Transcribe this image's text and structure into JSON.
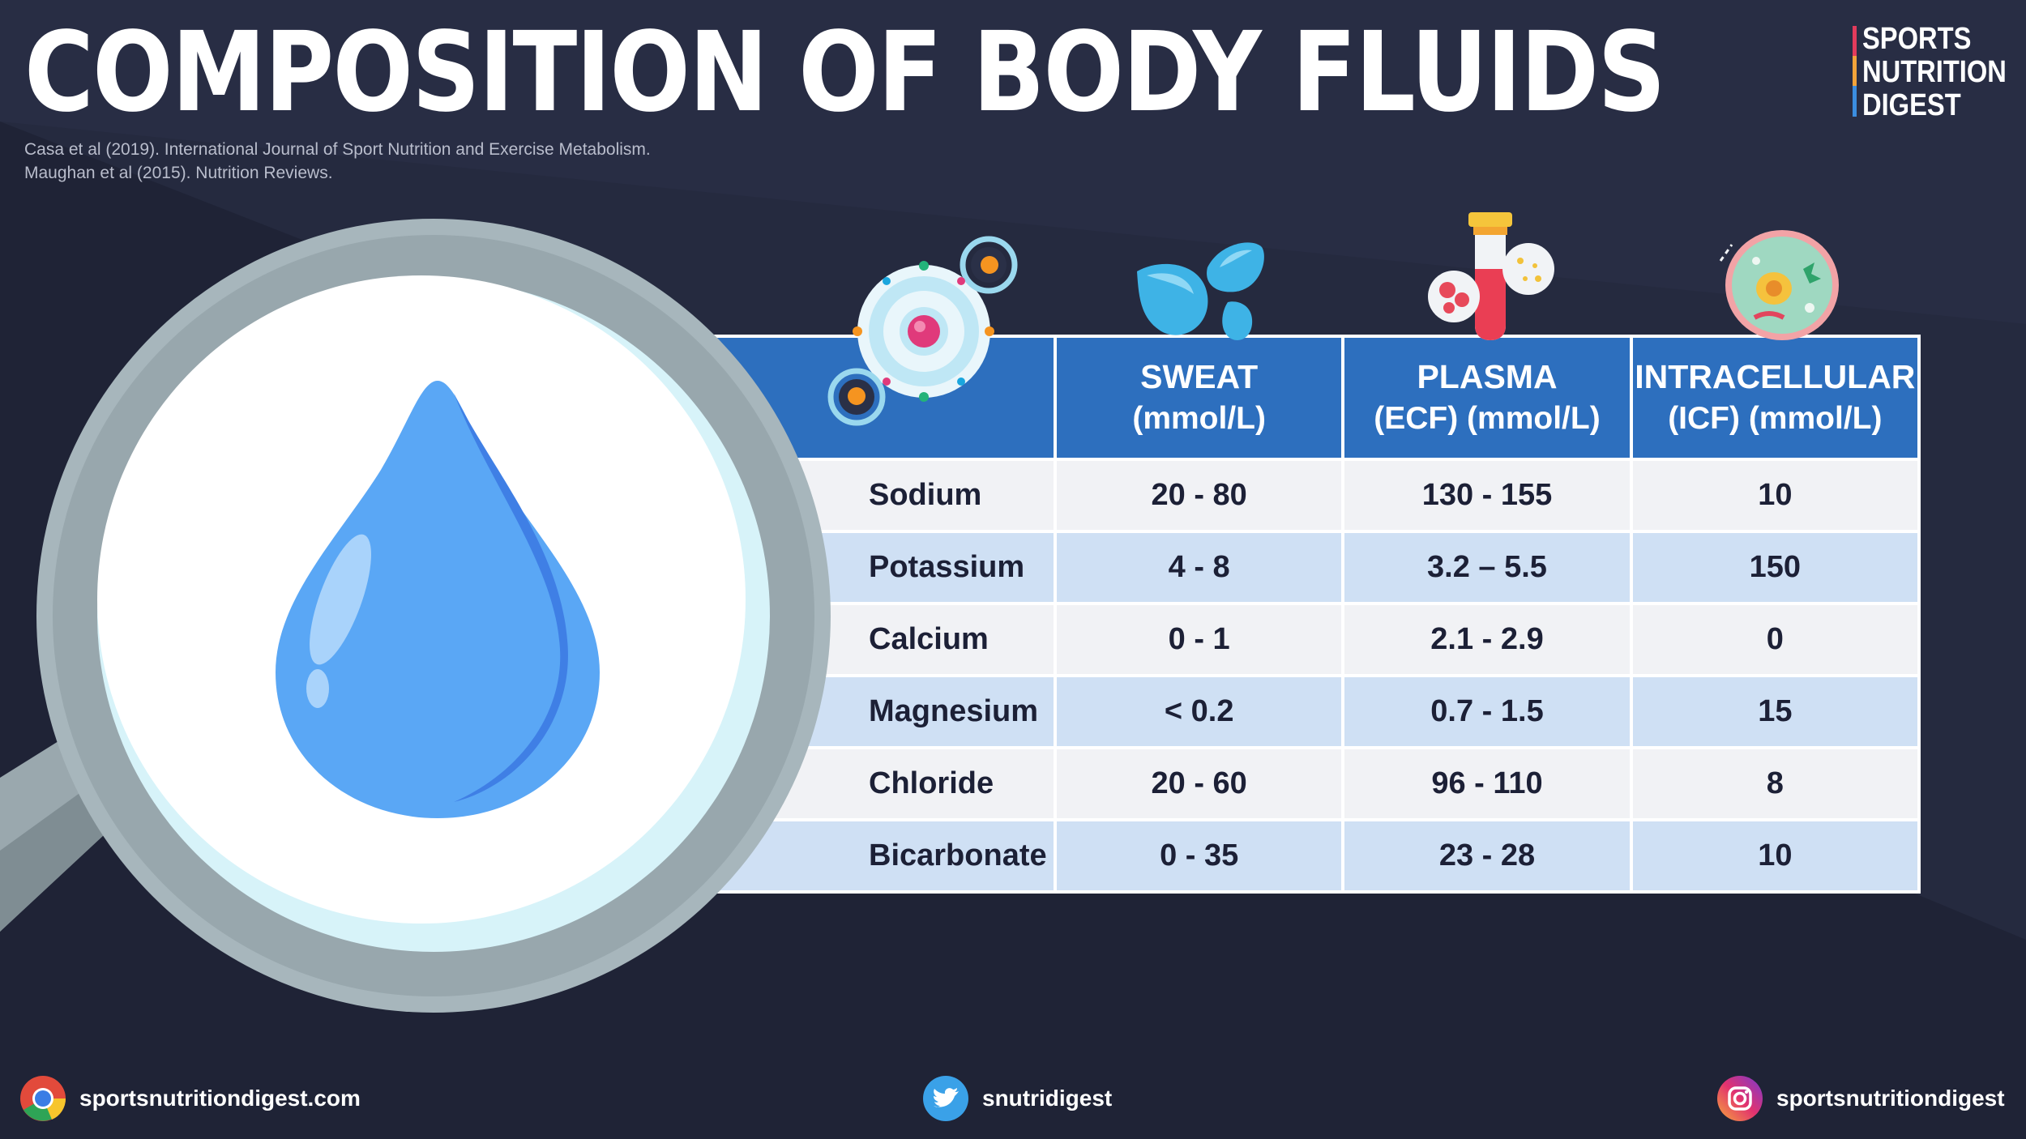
{
  "title": "COMPOSITION OF BODY FLUIDS",
  "references": [
    "Casa et al (2019). International Journal of Sport Nutrition and Exercise Metabolism.",
    "Maughan et al (2015). Nutrition Reviews."
  ],
  "logo": {
    "lines": [
      "SPORTS",
      "NUTRITION",
      "DIGEST"
    ]
  },
  "table": {
    "columns": [
      {
        "line1": "SWEAT",
        "line2": "(mmol/L)"
      },
      {
        "line1": "PLASMA",
        "line2": "(ECF) (mmol/L)"
      },
      {
        "line1": "INTRACELLULAR",
        "line2": "(ICF) (mmol/L)"
      }
    ],
    "rows": [
      {
        "name": "Sodium",
        "sweat": "20 - 80",
        "plasma": "130 - 155",
        "icf": "10"
      },
      {
        "name": "Potassium",
        "sweat": "4 - 8",
        "plasma": "3.2 – 5.5",
        "icf": "150"
      },
      {
        "name": "Calcium",
        "sweat": "0 - 1",
        "plasma": "2.1 - 2.9",
        "icf": "0"
      },
      {
        "name": "Magnesium",
        "sweat": "< 0.2",
        "plasma": "0.7 - 1.5",
        "icf": "15"
      },
      {
        "name": "Chloride",
        "sweat": "20 - 60",
        "plasma": "96 - 110",
        "icf": "8"
      },
      {
        "name": "Bicarbonate",
        "sweat": "0 - 35",
        "plasma": "23 - 28",
        "icf": "10"
      }
    ]
  },
  "footer": {
    "website": "sportsnutritiondigest.com",
    "twitter": "snutridigest",
    "instagram": "sportsnutritiondigest"
  },
  "icons": {
    "header": [
      "atom-icon",
      "sweat-drops-icon",
      "test-tube-icon",
      "cell-icon"
    ],
    "magnifier": "magnifying-glass-water-drop-icon",
    "footer": [
      "chrome-icon",
      "twitter-icon",
      "instagram-icon"
    ]
  },
  "colors": {
    "background": "#252a3f",
    "header_blue": "#2d6fbe",
    "row_light": "#f1f2f5",
    "row_blue": "#cfe0f4"
  }
}
